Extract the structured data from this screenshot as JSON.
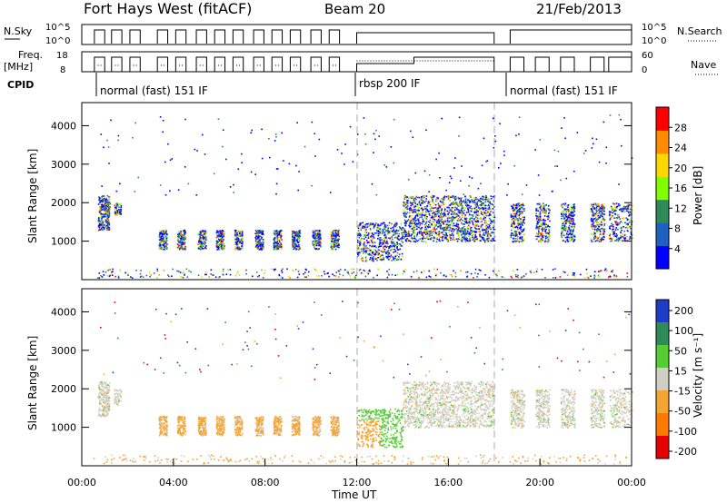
{
  "header": {
    "station": "Fort Hays West (fitACF)",
    "beam": "Beam 20",
    "date": "21/Feb/2013"
  },
  "chart_data": [
    {
      "type": "line",
      "panel": "noise",
      "left_label": "N.Sky",
      "right_label": "N.Search",
      "left_ticks": [
        "10^5",
        "10^0"
      ],
      "right_ticks": [
        "10^5",
        "10^0"
      ]
    },
    {
      "type": "line",
      "panel": "frequency",
      "left_label_line1": "Freq.",
      "left_label_line2": "[MHz]",
      "right_label": "Nave",
      "left_ticks": [
        "18",
        "8"
      ],
      "right_ticks": [
        "60",
        "0"
      ],
      "scan_blocks_hours": [
        [
          0.55,
          1.0
        ],
        [
          1.3,
          1.75
        ],
        [
          2.1,
          2.55
        ],
        [
          3.3,
          3.75
        ],
        [
          4.1,
          4.55
        ],
        [
          5.0,
          5.45
        ],
        [
          5.8,
          6.25
        ],
        [
          6.6,
          7.05
        ],
        [
          7.5,
          7.95
        ],
        [
          8.3,
          8.75
        ],
        [
          9.1,
          9.55
        ],
        [
          10.0,
          10.45
        ],
        [
          10.8,
          11.25
        ]
      ],
      "freq_low_mhz": 10.5,
      "freq_high_mhz": 14.5
    },
    {
      "type": "table",
      "panel": "cpid",
      "label": "CPID",
      "segments": [
        {
          "start": 1.0,
          "text": "normal (fast) 151 IF"
        },
        {
          "start": 12.0,
          "text": "rbsp 200 IF"
        },
        {
          "start": 18.5,
          "text": "normal (fast) 151 IF"
        }
      ]
    },
    {
      "type": "heatmap",
      "panel": "power",
      "ylabel": "Slant Range [km]",
      "xlim": [
        0,
        24
      ],
      "ylim": [
        0,
        4600
      ],
      "yticks": [
        1000,
        2000,
        3000,
        4000
      ],
      "colorbar_label": "Power [dB]",
      "colorbar_ticks": [
        "4",
        "8",
        "12",
        "16",
        "20",
        "24",
        "28"
      ],
      "colorbar_colors": [
        "#0000ff",
        "#2060c0",
        "#2e8b57",
        "#7fff00",
        "#ffd700",
        "#ff8c00",
        "#ff0000"
      ],
      "reference_lines_hours": [
        12,
        18
      ]
    },
    {
      "type": "heatmap",
      "panel": "velocity",
      "ylabel": "Slant Range [km]",
      "xlabel": "Time UT",
      "xlim": [
        0,
        24
      ],
      "ylim": [
        0,
        4600
      ],
      "yticks": [
        1000,
        2000,
        3000,
        4000
      ],
      "xticks": [
        "00:00",
        "04:00",
        "08:00",
        "12:00",
        "16:00",
        "20:00",
        "00:00"
      ],
      "colorbar_label": "Velocity [m s⁻¹]",
      "colorbar_ticks": [
        "200",
        "100",
        "50",
        "15",
        "-15",
        "-50",
        "-100",
        "-200"
      ],
      "colorbar_colors": [
        "#1e3cc8",
        "#2e8b57",
        "#55cc33",
        "#cfcfc4",
        "#f4a433",
        "#ff7a00",
        "#e60000"
      ],
      "reference_lines_hours": [
        12,
        18
      ]
    }
  ]
}
